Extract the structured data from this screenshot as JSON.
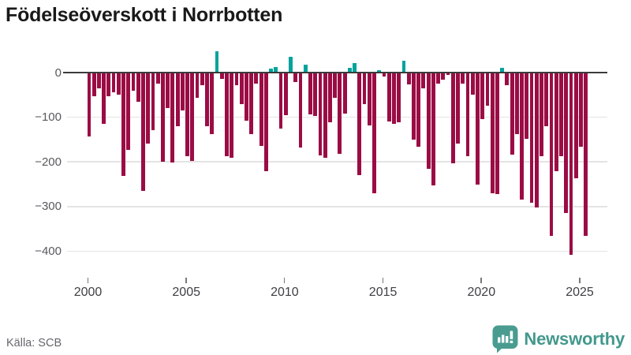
{
  "header": {
    "title": "Födelseöverskott i Norrbotten"
  },
  "footer": {
    "source": "Källa: SCB",
    "brand": "Newsworthy",
    "brand_color": "#43988d"
  },
  "chart_data": {
    "type": "bar",
    "title": "Födelseöverskott i Norrbotten",
    "frequency": "quarterly",
    "x_start_year": 2000,
    "x_end": "2025 Q2",
    "grid": "horizontal",
    "legend": "none",
    "ylim": [
      -430,
      60
    ],
    "colors": {
      "negative_bar": "#9b0c45",
      "positive_bar": "#00a39b",
      "zero_line": "#3b3b3b",
      "gridline": "#e4e4e4"
    },
    "yticks": [
      {
        "value": 0,
        "label": "0"
      },
      {
        "value": -100,
        "label": "−100"
      },
      {
        "value": -200,
        "label": "−200"
      },
      {
        "value": -300,
        "label": "−300"
      },
      {
        "value": -400,
        "label": "−400"
      }
    ],
    "xticks": [
      2000,
      2005,
      2010,
      2015,
      2020,
      2025
    ],
    "values": [
      -143,
      -53,
      -35,
      -115,
      -53,
      -44,
      -50,
      -232,
      -173,
      -41,
      -65,
      -265,
      -159,
      -129,
      -24,
      -200,
      -79,
      -201,
      -121,
      -85,
      -188,
      -198,
      -56,
      -29,
      -121,
      -138,
      47,
      -14,
      -188,
      -191,
      -29,
      -71,
      -108,
      -138,
      -24,
      -165,
      -221,
      8,
      13,
      -126,
      -96,
      36,
      -21,
      -168,
      18,
      -94,
      -97,
      -185,
      -190,
      -112,
      -56,
      -182,
      -91,
      10,
      21,
      -229,
      -71,
      -118,
      -271,
      6,
      -9,
      -109,
      -115,
      -112,
      26,
      -26,
      -150,
      -166,
      -36,
      -215,
      -253,
      -24,
      -16,
      -5,
      -203,
      -159,
      -24,
      -188,
      -50,
      -250,
      -105,
      -74,
      -270,
      -272,
      11,
      -28,
      -183,
      -138,
      -285,
      -148,
      -291,
      -303,
      -188,
      -121,
      -365,
      -220,
      -188,
      -315,
      -408,
      -237,
      -166,
      -365
    ]
  }
}
